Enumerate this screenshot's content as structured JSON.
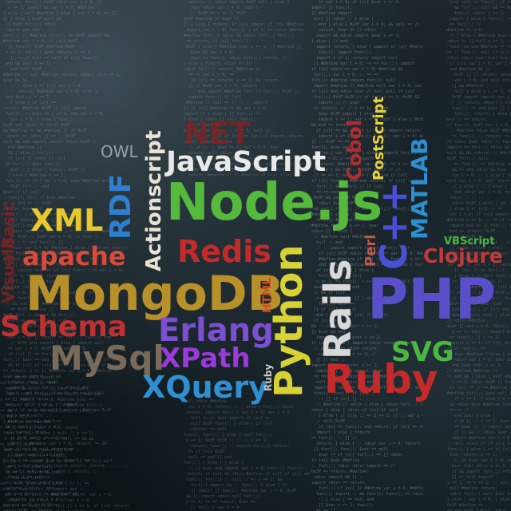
{
  "words": {
    "net": "NET",
    "owl": "OWL",
    "javascript": "JavaScript",
    "postscript": "PostScript",
    "matlab": "MATLAB",
    "cobol": "Cobol",
    "actionscript": "Actionscript",
    "rdf": "RDF",
    "xml": "XML",
    "nodejs": "Node.js",
    "cpp": "C++",
    "apache": "apache",
    "redis": "Redis",
    "perl": "Perl",
    "vbscript": "VBScript",
    "clojure": "Clojure",
    "mongodb": "MongoDB",
    "html": "HTML",
    "python": "Python",
    "rails": "Rails",
    "php": "PHP",
    "visualbasic": "VisualBasic",
    "schema": "Schema",
    "erlang": "Erlang",
    "mysql": "MySql",
    "xpath": "XPath",
    "svg": "SVG",
    "xquery": "XQuery",
    "ruby": "Ruby",
    "ruby_small": "Ruby"
  },
  "colors": {
    "net": "#8a1f1f",
    "owl": "#9aa0a4",
    "javascript": "#e9e9e9",
    "postscript": "#e6d23a",
    "matlab": "#2c8fd0",
    "cobol": "#c42d2d",
    "actionscript": "#e8e2d2",
    "rdf": "#2f7fd0",
    "xml": "#e8c82a",
    "nodejs": "#55b93c",
    "cpp": "#4a4fd8",
    "apache": "#d84a3a",
    "redis": "#c42a2a",
    "perl": "#c0574a",
    "vbscript": "#48b840",
    "clojure": "#c13a3a",
    "mongodb": "#b8902a",
    "html": "#d04a28",
    "python": "#d8d234",
    "rails": "#d8d8d8",
    "php": "#5a4fc8",
    "visualbasic": "#8a2020",
    "schema": "#c13030",
    "erlang": "#7a4fd0",
    "mysql": "#7a6a5a",
    "xpath": "#9a3ad8",
    "svg": "#4ab840",
    "xquery": "#2f8fd0",
    "ruby": "#c42a2a",
    "ruby_small": "#c8c8c8"
  }
}
